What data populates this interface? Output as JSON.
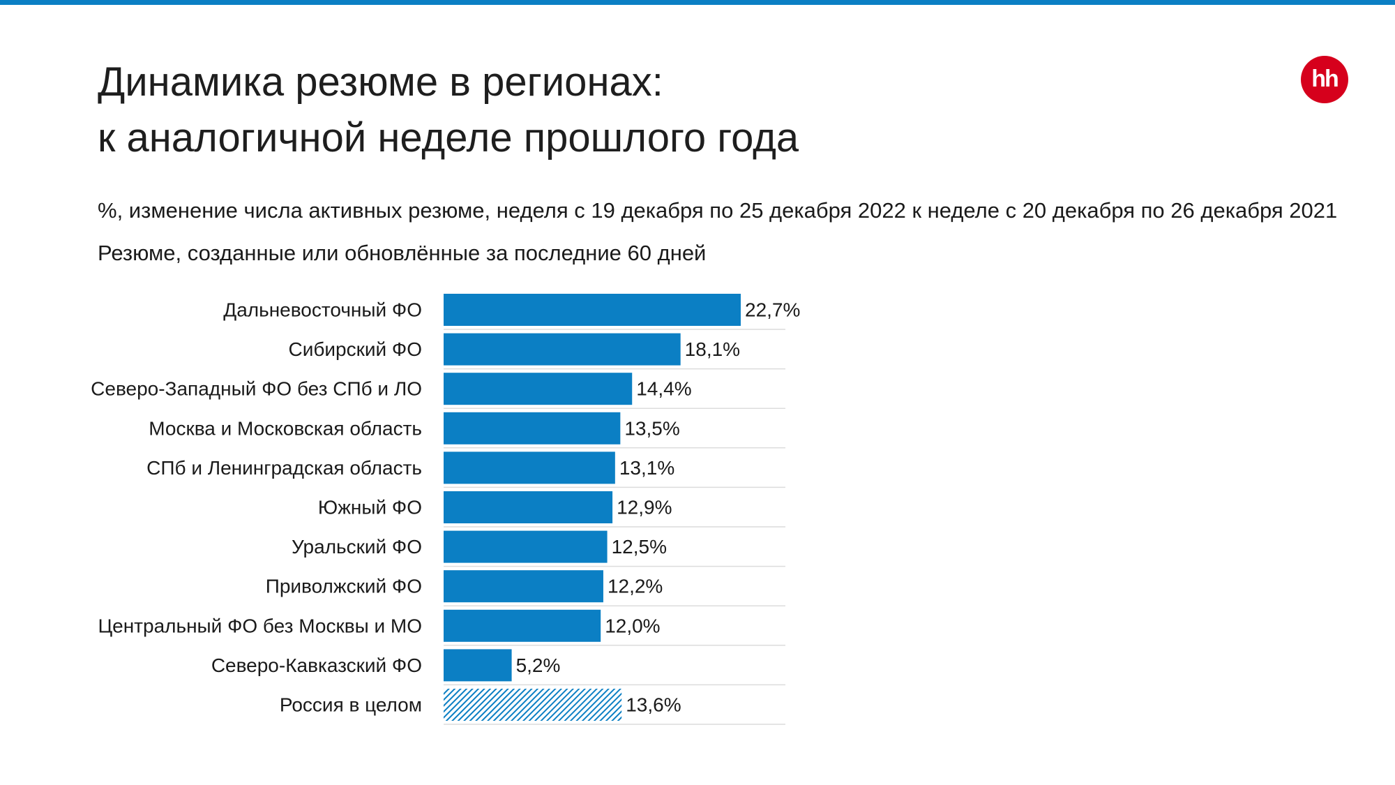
{
  "header": {
    "title_line1": "Динамика резюме в регионах:",
    "title_line2": "к аналогичной неделе прошлого года",
    "logo_text": "hh",
    "subtitle": "%, изменение числа активных резюме, неделя с 19 декабря по 25 декабря 2022 к неделе с 20 декабря по 26 декабря 2021",
    "note": "Резюме, созданные или обновлённые за последние 60 дней"
  },
  "colors": {
    "accent": "#0b7fc4",
    "bar": "#0b7fc4",
    "total_bar_pattern": "#0b7fc4",
    "logo": "#d6001c"
  },
  "chart_data": {
    "type": "bar",
    "orientation": "horizontal",
    "unit": "%",
    "decimal_separator": ",",
    "xlim": [
      0,
      26
    ],
    "grid": false,
    "categories": [
      "Дальневосточный ФО",
      "Сибирский ФО",
      "Северо-Западный ФО без СПб и ЛО",
      "Москва и Московская область",
      "СПб и Ленинградская область",
      "Южный ФО",
      "Уральский ФО",
      "Приволжский ФО",
      "Центральный ФО без Москвы и МО",
      "Северо-Кавказский ФО",
      "Россия в целом"
    ],
    "values": [
      22.7,
      18.1,
      14.4,
      13.5,
      13.1,
      12.9,
      12.5,
      12.2,
      12.0,
      5.2,
      13.6
    ],
    "highlight_pattern_index": 10
  }
}
